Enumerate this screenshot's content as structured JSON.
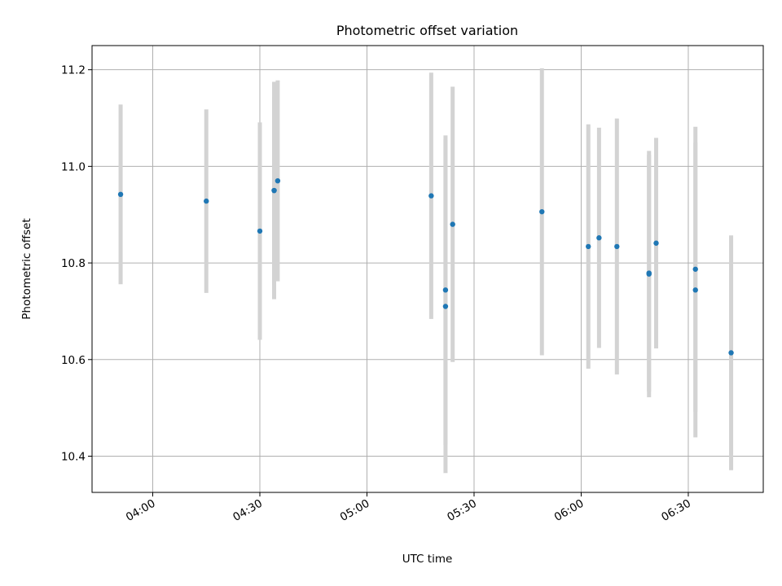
{
  "chart_data": {
    "type": "scatter",
    "title": "Photometric offset variation",
    "xlabel": "UTC time",
    "ylabel": "Photometric offset",
    "x_ticks": [
      "04:00",
      "04:30",
      "05:00",
      "05:30",
      "06:00",
      "06:30"
    ],
    "y_ticks": [
      "10.4",
      "10.6",
      "10.8",
      "11.0",
      "11.2"
    ],
    "xlim": [
      "03:43",
      "06:51"
    ],
    "ylim": [
      10.325,
      11.25
    ],
    "grid": true,
    "colors": {
      "point": "#1f77b4",
      "errorbar": "#d3d3d3",
      "grid": "#b0b0b0"
    },
    "points": [
      {
        "x": "03:51",
        "y": 10.942,
        "err": 0.186
      },
      {
        "x": "04:15",
        "y": 10.928,
        "err": 0.19
      },
      {
        "x": "04:30",
        "y": 10.866,
        "err": 0.225
      },
      {
        "x": "04:34",
        "y": 10.95,
        "err": 0.195
      },
      {
        "x": "04:34",
        "y": 10.95,
        "err": 0.225
      },
      {
        "x": "04:35",
        "y": 10.97,
        "err": 0.208
      },
      {
        "x": "05:18",
        "y": 10.939,
        "err": 0.255
      },
      {
        "x": "05:22",
        "y": 10.71,
        "err": 0.345
      },
      {
        "x": "05:22",
        "y": 10.744,
        "err": 0.32
      },
      {
        "x": "05:24",
        "y": 10.88,
        "err": 0.285
      },
      {
        "x": "05:49",
        "y": 10.906,
        "err": 0.297
      },
      {
        "x": "06:02",
        "y": 10.834,
        "err": 0.253
      },
      {
        "x": "06:05",
        "y": 10.852,
        "err": 0.228
      },
      {
        "x": "06:10",
        "y": 10.834,
        "err": 0.265
      },
      {
        "x": "06:19",
        "y": 10.777,
        "err": 0.255
      },
      {
        "x": "06:19",
        "y": 10.779,
        "err": 0.245
      },
      {
        "x": "06:21",
        "y": 10.841,
        "err": 0.218
      },
      {
        "x": "06:32",
        "y": 10.744,
        "err": 0.305
      },
      {
        "x": "06:32",
        "y": 10.787,
        "err": 0.295
      },
      {
        "x": "06:42",
        "y": 10.614,
        "err": 0.243
      }
    ]
  }
}
